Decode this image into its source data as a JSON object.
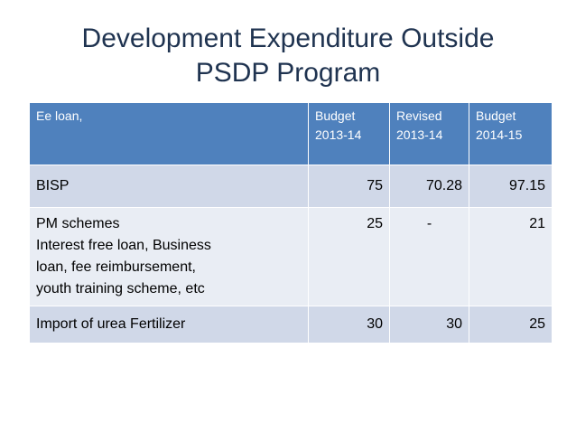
{
  "title": {
    "line1": "Development Expenditure Outside",
    "line2": "PSDP Program"
  },
  "table": {
    "header": {
      "col1": "Ee loan,",
      "col2_line1": "Budget",
      "col2_line2": "2013-14",
      "col3_line1": "Revised",
      "col3_line2": "2013-14",
      "col4_line1": "Budget",
      "col4_line2": "2014-15"
    },
    "rows": [
      {
        "label": "BISP",
        "budget_2013_14": "75",
        "revised_2013_14": "70.28",
        "budget_2014_15": "97.15"
      },
      {
        "label": "PM schemes",
        "sub1": "Interest free loan, Business",
        "sub2": "loan, fee reimbursement,",
        "sub3": "youth training scheme, etc",
        "budget_2013_14": "25",
        "revised_2013_14": "-",
        "budget_2014_15": "21"
      },
      {
        "label": "Import of urea Fertilizer",
        "budget_2013_14": "30",
        "revised_2013_14": "30",
        "budget_2014_15": "25"
      }
    ]
  },
  "colors": {
    "header_bg": "#4f81bd",
    "row_dark": "#d0d8e8",
    "row_light": "#e9edf4",
    "title_text": "#1f3350"
  }
}
